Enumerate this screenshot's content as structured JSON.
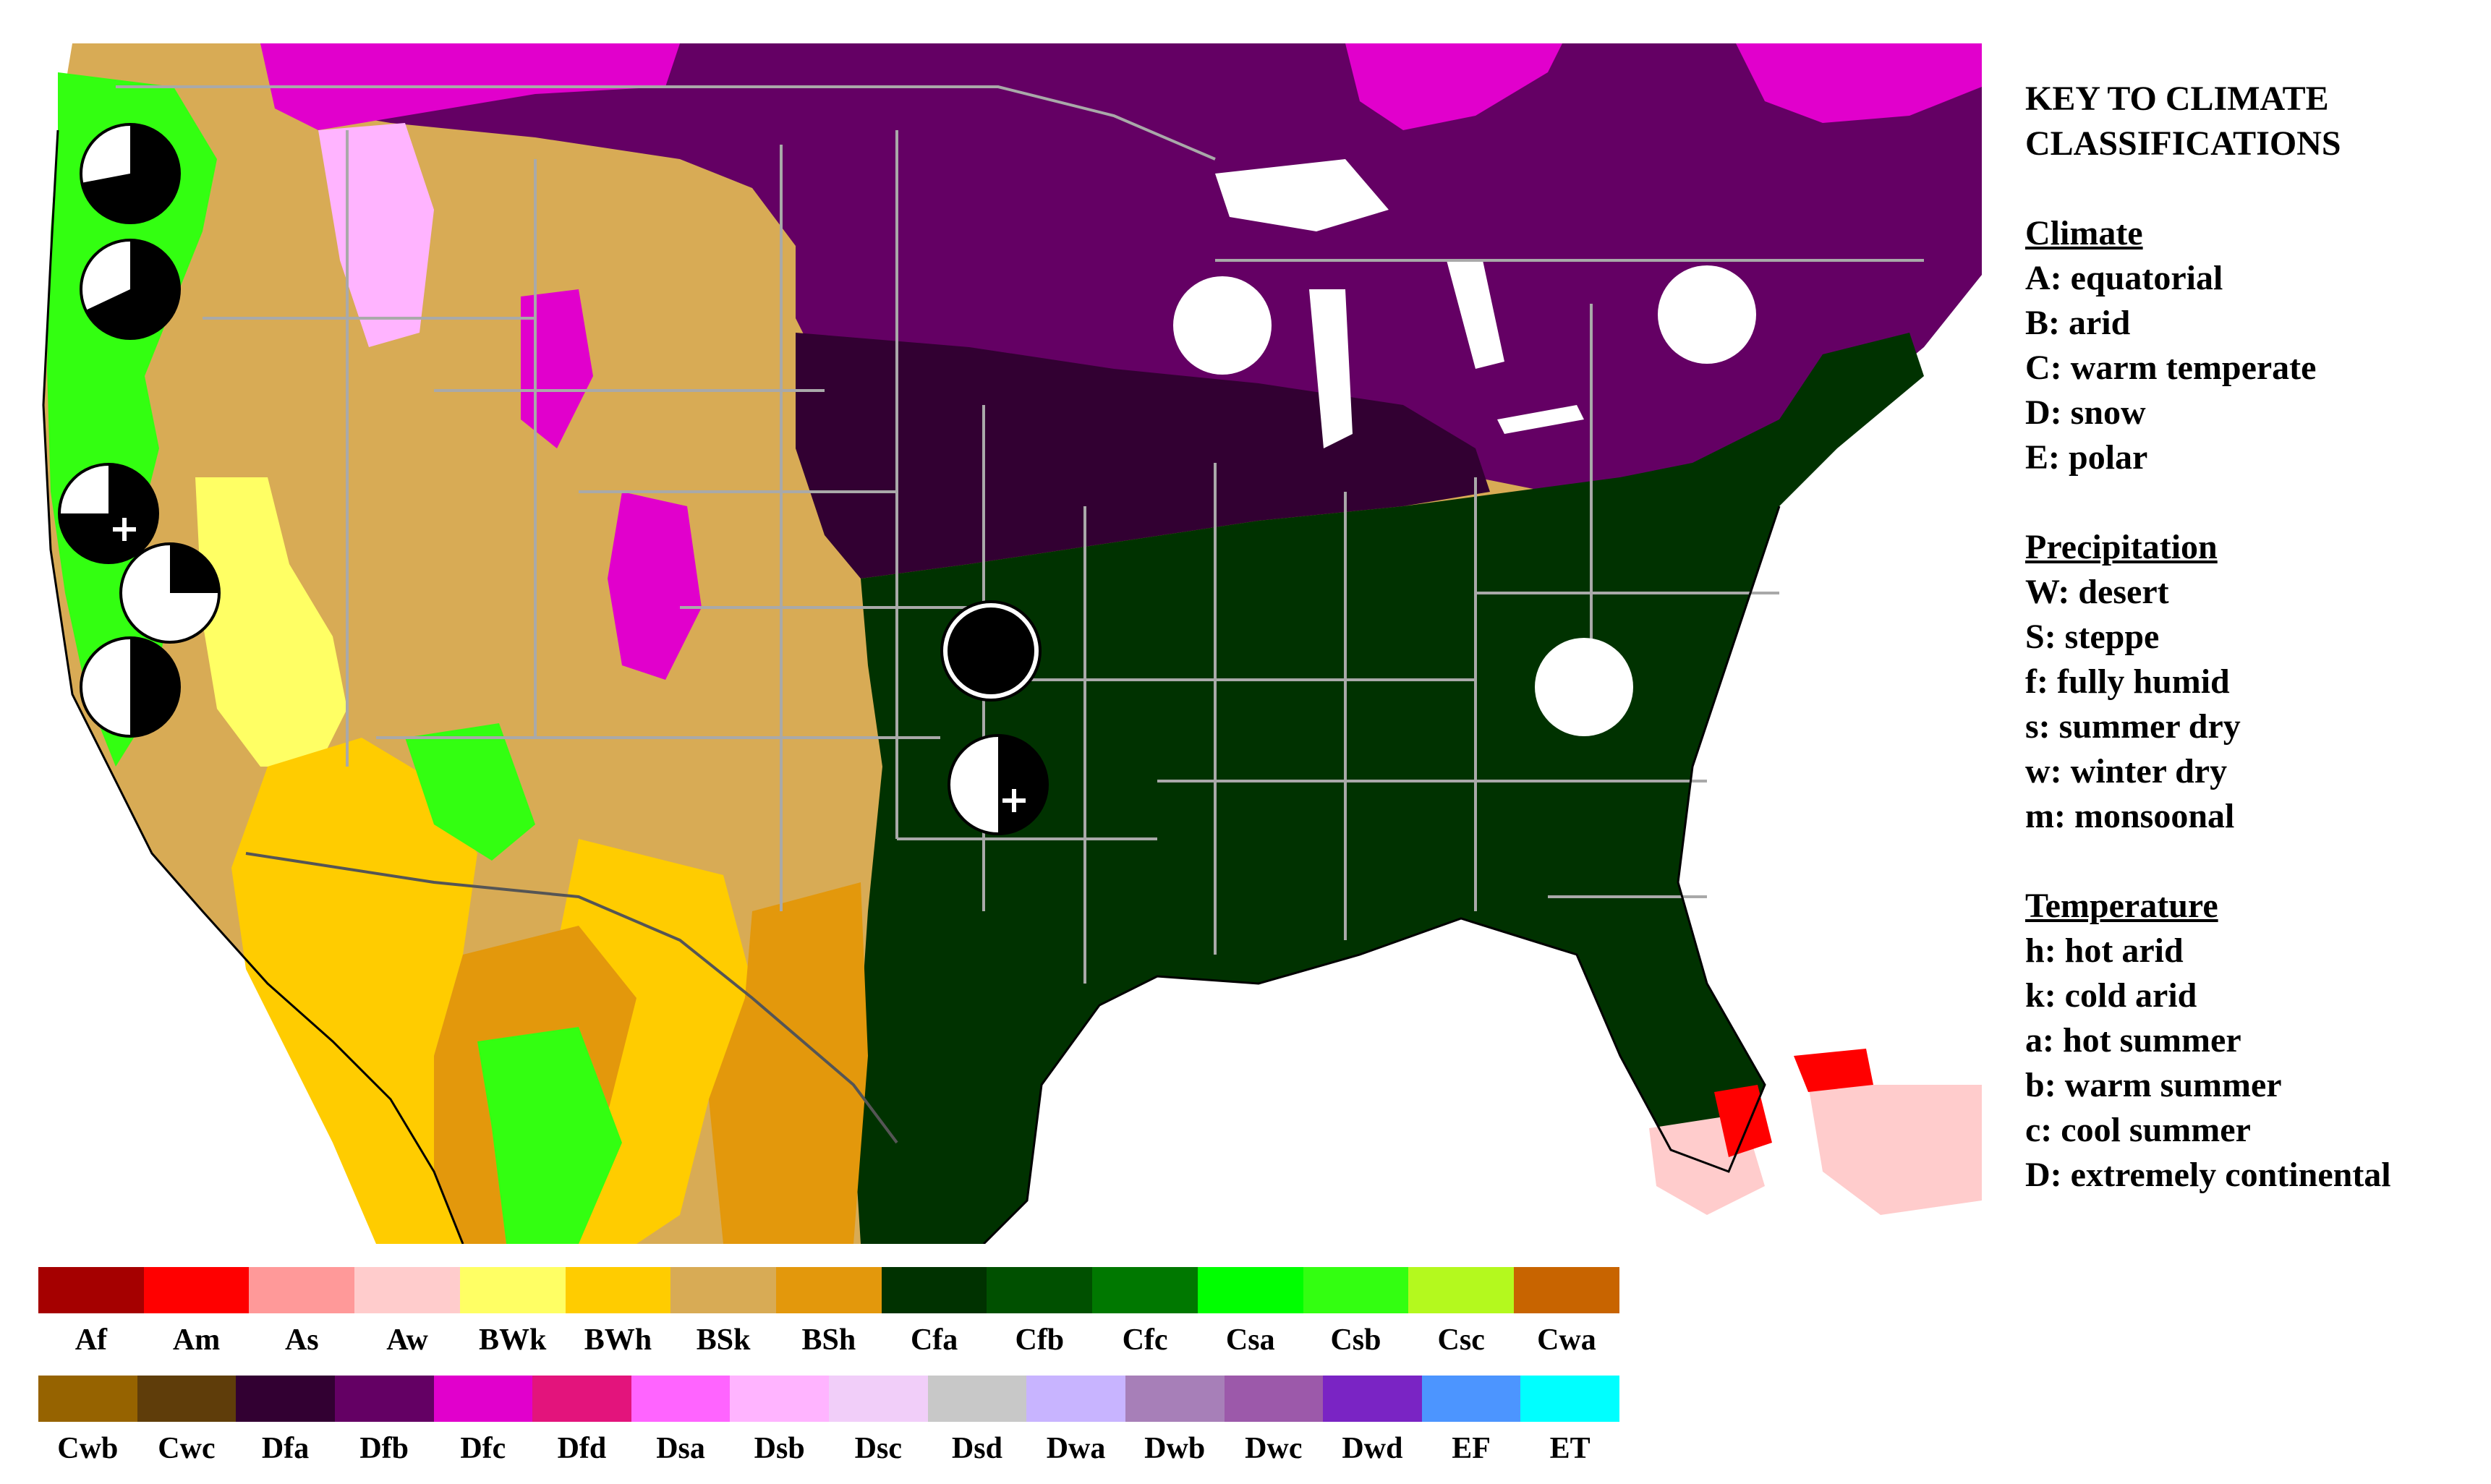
{
  "key": {
    "title_line1": "KEY TO CLIMATE",
    "title_line2": "CLASSIFICATIONS",
    "sections": [
      {
        "heading": "Climate",
        "items": [
          "A: equatorial",
          "B: arid",
          "C: warm temperate",
          "D: snow",
          "E: polar"
        ]
      },
      {
        "heading": "Precipitation",
        "items": [
          "W: desert",
          "S: steppe",
          "f: fully humid",
          "s: summer dry",
          "w: winter dry",
          "m: monsoonal"
        ]
      },
      {
        "heading": "Temperature",
        "items": [
          "h: hot arid",
          "k: cold arid",
          "a: hot summer",
          "b: warm summer",
          "c: cool summer",
          "D: extremely continental"
        ]
      }
    ]
  },
  "legend": {
    "row1": [
      {
        "code": "Af",
        "color": "#a50000"
      },
      {
        "code": "Am",
        "color": "#ff0000"
      },
      {
        "code": "As",
        "color": "#ff9999"
      },
      {
        "code": "Aw",
        "color": "#ffcccc"
      },
      {
        "code": "BWk",
        "color": "#ffff64"
      },
      {
        "code": "BWh",
        "color": "#ffcc00"
      },
      {
        "code": "BSk",
        "color": "#d8ab55"
      },
      {
        "code": "BSh",
        "color": "#e3980c"
      },
      {
        "code": "Cfa",
        "color": "#003200"
      },
      {
        "code": "Cfb",
        "color": "#005000"
      },
      {
        "code": "Cfc",
        "color": "#007800"
      },
      {
        "code": "Csa",
        "color": "#00ff00"
      },
      {
        "code": "Csb",
        "color": "#33ff11"
      },
      {
        "code": "Csc",
        "color": "#b4f91e"
      },
      {
        "code": "Cwa",
        "color": "#c86400"
      }
    ],
    "row2": [
      {
        "code": "Cwb",
        "color": "#966300"
      },
      {
        "code": "Cwc",
        "color": "#5f3d0a"
      },
      {
        "code": "Dfa",
        "color": "#320032"
      },
      {
        "code": "Dfb",
        "color": "#640064"
      },
      {
        "code": "Dfc",
        "color": "#e100cc"
      },
      {
        "code": "Dfd",
        "color": "#e3147c"
      },
      {
        "code": "Dsa",
        "color": "#ff64ff"
      },
      {
        "code": "Dsb",
        "color": "#ffb4ff"
      },
      {
        "code": "Dsc",
        "color": "#f1cef9"
      },
      {
        "code": "Dsd",
        "color": "#c8c8c8"
      },
      {
        "code": "Dwa",
        "color": "#c8b4ff"
      },
      {
        "code": "Dwb",
        "color": "#a77fb8"
      },
      {
        "code": "Dwc",
        "color": "#9c59aa"
      },
      {
        "code": "Dwd",
        "color": "#7a24c4"
      },
      {
        "code": "EF",
        "color": "#4c95ff"
      },
      {
        "code": "ET",
        "color": "#00ffff"
      }
    ]
  },
  "map": {
    "colors": {
      "ocean": "#ffffff",
      "humid_subtropical": "#003200",
      "humid_continental": "#320032",
      "warm_summer_continental": "#640064",
      "subarctic": "#e100cc",
      "cold_steppe": "#d8ab55",
      "hot_steppe": "#e3980c",
      "hot_desert": "#ffcc00",
      "cold_desert": "#ffff64",
      "mediterranean": "#33ff11",
      "dry_summer_continental": "#ffb4ff",
      "tropical_monsoon": "#ff0000",
      "tropical_savanna": "#ffcccc",
      "boundary": "#a9a9a9"
    },
    "markers": [
      {
        "id": "nw-washington",
        "fraction_black": 0.72,
        "plus": false
      },
      {
        "id": "oregon-coast",
        "fraction_black": 0.68,
        "plus": false
      },
      {
        "id": "n-california",
        "fraction_black": 0.75,
        "plus": true
      },
      {
        "id": "central-california",
        "fraction_black": 0.25,
        "plus": false
      },
      {
        "id": "s-california",
        "fraction_black": 0.5,
        "plus": false
      },
      {
        "id": "kansas",
        "fraction_black": 1.0,
        "plus": false
      },
      {
        "id": "oklahoma",
        "fraction_black": 0.5,
        "plus": true
      },
      {
        "id": "wisconsin",
        "fraction_black": 0.0,
        "plus": false
      },
      {
        "id": "new-york",
        "fraction_black": 0.0,
        "plus": false
      },
      {
        "id": "virginia",
        "fraction_black": 0.0,
        "plus": false
      }
    ]
  }
}
